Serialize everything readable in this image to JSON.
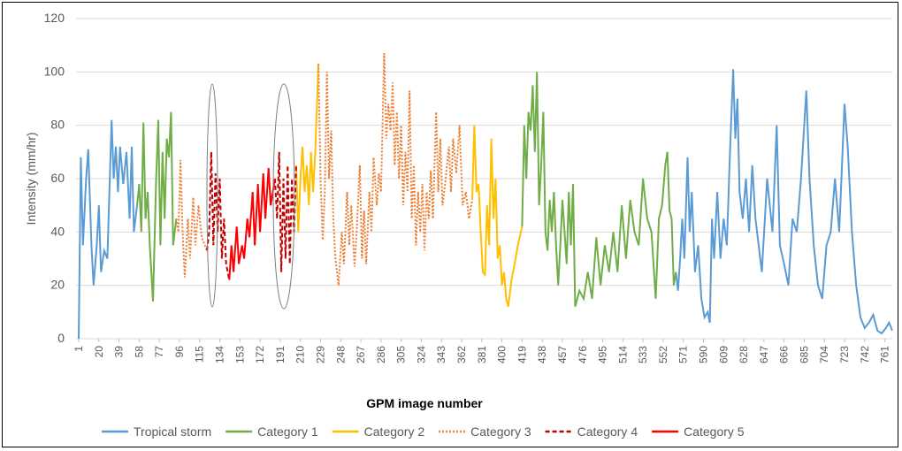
{
  "chart_data": {
    "type": "line",
    "x_label": "GPM image number",
    "y_label": "Intensity (mm/hr)",
    "xlim": [
      1,
      768
    ],
    "ylim": [
      0,
      120
    ],
    "xticks": [
      1,
      20,
      39,
      58,
      77,
      96,
      115,
      134,
      153,
      172,
      191,
      210,
      229,
      248,
      267,
      286,
      305,
      324,
      343,
      362,
      381,
      400,
      419,
      438,
      457,
      476,
      495,
      514,
      533,
      552,
      571,
      590,
      609,
      628,
      647,
      666,
      685,
      704,
      723,
      742,
      761
    ],
    "yticks": [
      0,
      20,
      40,
      60,
      80,
      100,
      120
    ],
    "grid": true,
    "legend": "bottom",
    "series": [
      {
        "name": "Tropical storm",
        "color": "#5b9bd5",
        "dash": "solid",
        "x": [
          1,
          3,
          5,
          8,
          10,
          13,
          15,
          18,
          20,
          22,
          25,
          28,
          32,
          34,
          36,
          38,
          40,
          43,
          46,
          49,
          51,
          53,
          56,
          null,
          564,
          566,
          568,
          570,
          572,
          575,
          577,
          579,
          582,
          585,
          588,
          591,
          594,
          596,
          598,
          600,
          603,
          606,
          609,
          612,
          615,
          618,
          620,
          622,
          624,
          627,
          630,
          633,
          636,
          639,
          642,
          645,
          650,
          655,
          659,
          662,
          666,
          670,
          674,
          678,
          682,
          687,
          690,
          694,
          698,
          702,
          706,
          710,
          714,
          718,
          723,
          726,
          730,
          734,
          738,
          742,
          746,
          750,
          754,
          758,
          762,
          765,
          768
        ],
        "values": [
          0,
          68,
          35,
          60,
          71,
          35,
          20,
          35,
          50,
          25,
          33,
          30,
          82,
          60,
          72,
          55,
          72,
          58,
          70,
          45,
          72,
          40,
          50,
          null,
          25,
          18,
          30,
          45,
          30,
          68,
          40,
          55,
          25,
          35,
          15,
          8,
          10,
          6,
          45,
          30,
          55,
          30,
          45,
          35,
          70,
          101,
          75,
          90,
          55,
          45,
          60,
          40,
          65,
          45,
          35,
          25,
          60,
          40,
          80,
          35,
          28,
          20,
          45,
          40,
          60,
          93,
          60,
          35,
          20,
          15,
          35,
          40,
          60,
          40,
          88,
          72,
          40,
          20,
          8,
          4,
          6,
          9,
          3,
          2,
          4,
          6,
          3
        ]
      },
      {
        "name": "Category 1",
        "color": "#70ad47",
        "dash": "solid",
        "x": [
          56,
          58,
          60,
          62,
          64,
          66,
          68,
          71,
          74,
          76,
          78,
          80,
          82,
          84,
          86,
          88,
          90,
          93,
          null,
          419,
          421,
          423,
          425,
          427,
          429,
          431,
          433,
          435,
          437,
          439,
          441,
          443,
          445,
          447,
          449,
          451,
          453,
          455,
          457,
          459,
          461,
          463,
          465,
          467,
          469,
          473,
          477,
          481,
          485,
          489,
          493,
          497,
          501,
          505,
          509,
          513,
          517,
          521,
          525,
          529,
          533,
          537,
          541,
          545,
          548,
          551,
          554,
          556,
          558,
          560,
          562,
          564
        ],
        "values": [
          50,
          58,
          40,
          81,
          45,
          55,
          35,
          14,
          60,
          82,
          35,
          70,
          45,
          75,
          68,
          85,
          35,
          45,
          null,
          42,
          80,
          60,
          85,
          78,
          95,
          70,
          100,
          50,
          65,
          85,
          40,
          33,
          52,
          40,
          55,
          35,
          20,
          35,
          52,
          40,
          28,
          55,
          35,
          58,
          12,
          18,
          15,
          25,
          15,
          38,
          20,
          35,
          25,
          40,
          25,
          50,
          30,
          52,
          40,
          35,
          60,
          45,
          40,
          15,
          45,
          50,
          65,
          70,
          48,
          45,
          20,
          25
        ]
      },
      {
        "name": "Category 2",
        "color": "#ffc000",
        "dash": "solid",
        "x": [
          206,
          208,
          210,
          212,
          214,
          216,
          218,
          220,
          222,
          224,
          227,
          null,
          372,
          374,
          376,
          378,
          380,
          382,
          384,
          386,
          388,
          390,
          392,
          394,
          396,
          398,
          400,
          402,
          404,
          406,
          409,
          412,
          415,
          419
        ],
        "values": [
          65,
          40,
          60,
          72,
          55,
          65,
          50,
          70,
          55,
          70,
          103,
          null,
          52,
          80,
          55,
          58,
          40,
          25,
          24,
          50,
          35,
          75,
          45,
          60,
          30,
          35,
          20,
          25,
          15,
          12,
          22,
          28,
          35,
          42
        ]
      },
      {
        "name": "Category 3",
        "color": "#ed7d31",
        "dash": "dotted",
        "x": [
          93,
          95,
          97,
          99,
          101,
          104,
          106,
          109,
          111,
          114,
          117,
          120,
          122,
          null,
          227,
          229,
          231,
          233,
          235,
          237,
          239,
          241,
          243,
          246,
          249,
          251,
          254,
          256,
          258,
          261,
          263,
          266,
          268,
          270,
          272,
          275,
          277,
          279,
          282,
          284,
          286,
          289,
          291,
          293,
          295,
          297,
          299,
          301,
          303,
          305,
          307,
          309,
          311,
          313,
          315,
          317,
          319,
          321,
          323,
          325,
          327,
          329,
          331,
          333,
          335,
          338,
          340,
          342,
          344,
          347,
          350,
          352,
          354,
          357,
          360,
          363,
          366,
          369,
          372
        ],
        "values": [
          45,
          40,
          67,
          40,
          23,
          45,
          30,
          53,
          35,
          50,
          38,
          35,
          33,
          null,
          103,
          60,
          37,
          55,
          100,
          60,
          78,
          45,
          30,
          20,
          40,
          28,
          55,
          35,
          50,
          27,
          40,
          65,
          30,
          48,
          28,
          55,
          40,
          68,
          50,
          62,
          55,
          107,
          75,
          88,
          78,
          96,
          65,
          85,
          60,
          80,
          50,
          70,
          55,
          93,
          45,
          65,
          35,
          55,
          40,
          58,
          33,
          55,
          45,
          63,
          45,
          85,
          55,
          75,
          50,
          60,
          72,
          55,
          75,
          62,
          80,
          50,
          55,
          45,
          52
        ]
      },
      {
        "name": "Category 4",
        "color": "#c00000",
        "dash": "dashed",
        "x": [
          122,
          124,
          126,
          128,
          130,
          132,
          134,
          136,
          138,
          140,
          143,
          null,
          186,
          188,
          190,
          192,
          194,
          196,
          198,
          200,
          202,
          204,
          206
        ],
        "values": [
          33,
          40,
          70,
          35,
          62,
          40,
          60,
          30,
          45,
          28,
          22,
          null,
          60,
          45,
          70,
          25,
          60,
          30,
          65,
          28,
          60,
          40,
          65
        ]
      },
      {
        "name": "Category 5",
        "color": "#ff0000",
        "dash": "solid",
        "x": [
          143,
          145,
          147,
          150,
          152,
          155,
          157,
          160,
          162,
          165,
          167,
          170,
          172,
          175,
          177,
          180,
          182,
          184,
          186
        ],
        "values": [
          22,
          35,
          25,
          42,
          28,
          35,
          30,
          45,
          38,
          55,
          35,
          58,
          40,
          62,
          45,
          64,
          50,
          55,
          60
        ]
      }
    ]
  }
}
